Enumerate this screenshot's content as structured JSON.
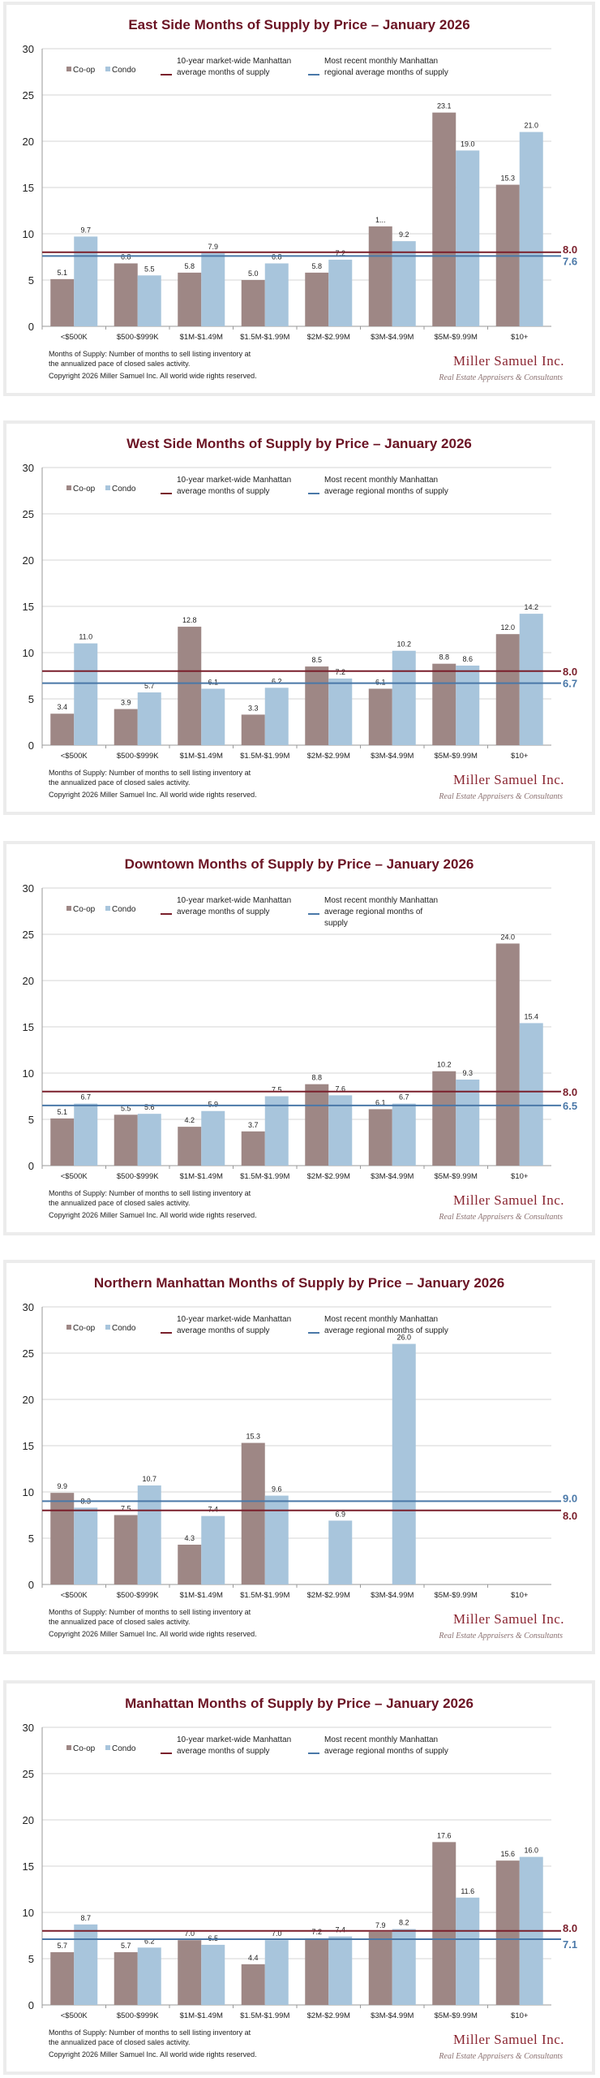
{
  "colors": {
    "coop": "#9e8785",
    "condo": "#a8c5dc",
    "market_line": "#7a1f2b",
    "regional_line": "#4a78a8",
    "title": "#6b1424"
  },
  "footnote": {
    "line1": "Months of Supply: Number of months to sell listing inventory at",
    "line2": "the annualized pace of closed sales activity.",
    "copyright": "Copyright 2026 Miller Samuel Inc.  All world wide rights reserved."
  },
  "logo": {
    "name": "Miller Samuel Inc.",
    "tagline": "Real Estate Appraisers & Consultants"
  },
  "chart_data": [
    {
      "type": "bar",
      "title": "East Side Months of Supply by Price – January 2026",
      "categories": [
        "<$500K",
        "$500-$999K",
        "$1M-$1.49M",
        "$1.5M-$1.99M",
        "$2M-$2.99M",
        "$3M-$4.99M",
        "$5M-$9.99M",
        "$10+"
      ],
      "ylim": [
        0,
        30
      ],
      "yticks": [
        0,
        5,
        10,
        15,
        20,
        25,
        30
      ],
      "grid": true,
      "legend": "top-left",
      "series": [
        {
          "name": "Co-op",
          "values": [
            5.1,
            6.8,
            5.8,
            5.0,
            5.8,
            10.8,
            23.1,
            15.3
          ],
          "labels": [
            "5.1",
            "6.8",
            "5.8",
            "5.0",
            "5.8",
            "1...",
            "23.1",
            "15.3"
          ]
        },
        {
          "name": "Condo",
          "values": [
            9.7,
            5.5,
            7.9,
            6.8,
            7.2,
            9.2,
            19.0,
            21.0
          ],
          "labels": [
            "9.7",
            "5.5",
            "7.9",
            "6.8",
            "7.2",
            "9.2",
            "19.0",
            "21.0"
          ]
        }
      ],
      "reference_lines": [
        {
          "name": "10-year market-wide Manhattan average months of supply",
          "legend_lines": [
            "10-year market-wide Manhattan",
            "average months of supply"
          ],
          "value": 8.0,
          "label": "8.0",
          "color": "market_line"
        },
        {
          "name": "Most recent monthly Manhattan regional average months of supply",
          "legend_lines": [
            "Most recent monthly Manhattan",
            "regional average months of supply"
          ],
          "value": 7.6,
          "label": "7.6",
          "color": "regional_line"
        }
      ]
    },
    {
      "type": "bar",
      "title": "West Side Months of Supply by Price – January 2026",
      "categories": [
        "<$500K",
        "$500-$999K",
        "$1M-$1.49M",
        "$1.5M-$1.99M",
        "$2M-$2.99M",
        "$3M-$4.99M",
        "$5M-$9.99M",
        "$10+"
      ],
      "ylim": [
        0,
        30
      ],
      "yticks": [
        0,
        5,
        10,
        15,
        20,
        25,
        30
      ],
      "grid": true,
      "legend": "top-left",
      "series": [
        {
          "name": "Co-op",
          "values": [
            3.4,
            3.9,
            12.8,
            3.3,
            8.5,
            6.1,
            8.8,
            12.0
          ],
          "labels": [
            "3.4",
            "3.9",
            "12.8",
            "3.3",
            "8.5",
            "6.1",
            "8.8",
            "12.0"
          ]
        },
        {
          "name": "Condo",
          "values": [
            11.0,
            5.7,
            6.1,
            6.2,
            7.2,
            10.2,
            8.6,
            14.2
          ],
          "labels": [
            "11.0",
            "5.7",
            "6.1",
            "6.2",
            "7.2",
            "10.2",
            "8.6",
            "14.2"
          ]
        }
      ],
      "reference_lines": [
        {
          "name": "10-year market-wide Manhattan average months of supply",
          "legend_lines": [
            "10-year market-wide Manhattan",
            "average months of supply"
          ],
          "value": 8.0,
          "label": "8.0",
          "color": "market_line"
        },
        {
          "name": "Most recent monthly Manhattan average regional months of supply",
          "legend_lines": [
            "Most recent monthly Manhattan",
            "average regional months of supply"
          ],
          "value": 6.7,
          "label": "6.7",
          "color": "regional_line"
        }
      ]
    },
    {
      "type": "bar",
      "title": "Downtown Months of Supply by Price – January 2026",
      "categories": [
        "<$500K",
        "$500-$999K",
        "$1M-$1.49M",
        "$1.5M-$1.99M",
        "$2M-$2.99M",
        "$3M-$4.99M",
        "$5M-$9.99M",
        "$10+"
      ],
      "ylim": [
        0,
        30
      ],
      "yticks": [
        0,
        5,
        10,
        15,
        20,
        25,
        30
      ],
      "grid": true,
      "legend": "top-left",
      "series": [
        {
          "name": "Co-op",
          "values": [
            5.1,
            5.5,
            4.2,
            3.7,
            8.8,
            6.1,
            10.2,
            24.0
          ],
          "labels": [
            "5.1",
            "5.5",
            "4.2",
            "3.7",
            "8.8",
            "6.1",
            "10.2",
            "24.0"
          ]
        },
        {
          "name": "Condo",
          "values": [
            6.7,
            5.6,
            5.9,
            7.5,
            7.6,
            6.7,
            9.3,
            15.4
          ],
          "labels": [
            "6.7",
            "5.6",
            "5.9",
            "7.5",
            "7.6",
            "6.7",
            "9.3",
            "15.4"
          ]
        }
      ],
      "reference_lines": [
        {
          "name": "10-year market-wide Manhattan average months of supply",
          "legend_lines": [
            "10-year market-wide Manhattan",
            "average months of supply"
          ],
          "value": 8.0,
          "label": "8.0",
          "color": "market_line"
        },
        {
          "name": "Most recent monthly Manhattan average regional months of supply",
          "legend_lines": [
            "Most recent monthly Manhattan",
            "average regional months of",
            "supply"
          ],
          "value": 6.5,
          "label": "6.5",
          "color": "regional_line"
        }
      ]
    },
    {
      "type": "bar",
      "title": "Northern Manhattan Months of Supply by Price – January 2026",
      "categories": [
        "<$500K",
        "$500-$999K",
        "$1M-$1.49M",
        "$1.5M-$1.99M",
        "$2M-$2.99M",
        "$3M-$4.99M",
        "$5M-$9.99M",
        "$10+"
      ],
      "ylim": [
        0,
        30
      ],
      "yticks": [
        0,
        5,
        10,
        15,
        20,
        25,
        30
      ],
      "grid": true,
      "legend": "top-left",
      "series": [
        {
          "name": "Co-op",
          "values": [
            9.9,
            7.5,
            4.3,
            15.3,
            null,
            null,
            null,
            null
          ],
          "labels": [
            "9.9",
            "7.5",
            "4.3",
            "15.3",
            null,
            null,
            null,
            null
          ]
        },
        {
          "name": "Condo",
          "values": [
            8.3,
            10.7,
            7.4,
            9.6,
            6.9,
            26.0,
            null,
            null
          ],
          "labels": [
            "8.3",
            "10.7",
            "7.4",
            "9.6",
            "6.9",
            "26.0",
            null,
            null
          ]
        }
      ],
      "reference_lines": [
        {
          "name": "10-year market-wide Manhattan average months of supply",
          "legend_lines": [
            "10-year market-wide Manhattan",
            "average months of supply"
          ],
          "value": 8.0,
          "label": "8.0",
          "color": "market_line"
        },
        {
          "name": "Most recent monthly Manhattan average regional months of supply",
          "legend_lines": [
            "Most recent monthly Manhattan",
            "average regional months of supply"
          ],
          "value": 9.0,
          "label": "9.0",
          "color": "regional_line"
        }
      ]
    },
    {
      "type": "bar",
      "title": "Manhattan Months of Supply by Price – January 2026",
      "categories": [
        "<$500K",
        "$500-$999K",
        "$1M-$1.49M",
        "$1.5M-$1.99M",
        "$2M-$2.99M",
        "$3M-$4.99M",
        "$5M-$9.99M",
        "$10+"
      ],
      "ylim": [
        0,
        30
      ],
      "yticks": [
        0,
        5,
        10,
        15,
        20,
        25,
        30
      ],
      "grid": true,
      "legend": "top-left",
      "series": [
        {
          "name": "Co-op",
          "values": [
            5.7,
            5.7,
            7.0,
            4.4,
            7.2,
            7.9,
            17.6,
            15.6
          ],
          "labels": [
            "5.7",
            "5.7",
            "7.0",
            "4.4",
            "7.2",
            "7.9",
            "17.6",
            "15.6"
          ]
        },
        {
          "name": "Condo",
          "values": [
            8.7,
            6.2,
            6.5,
            7.0,
            7.4,
            8.2,
            11.6,
            16.0
          ],
          "labels": [
            "8.7",
            "6.2",
            "6.5",
            "7.0",
            "7.4",
            "8.2",
            "11.6",
            "16.0"
          ]
        }
      ],
      "reference_lines": [
        {
          "name": "10-year market-wide Manhattan average months of supply",
          "legend_lines": [
            "10-year market-wide Manhattan",
            "average months of supply"
          ],
          "value": 8.0,
          "label": "8.0",
          "color": "market_line"
        },
        {
          "name": "Most recent monthly Manhattan average regional months of supply",
          "legend_lines": [
            "Most recent monthly Manhattan",
            "average regional months of supply"
          ],
          "value": 7.1,
          "label": "7.1",
          "color": "regional_line"
        }
      ]
    }
  ]
}
